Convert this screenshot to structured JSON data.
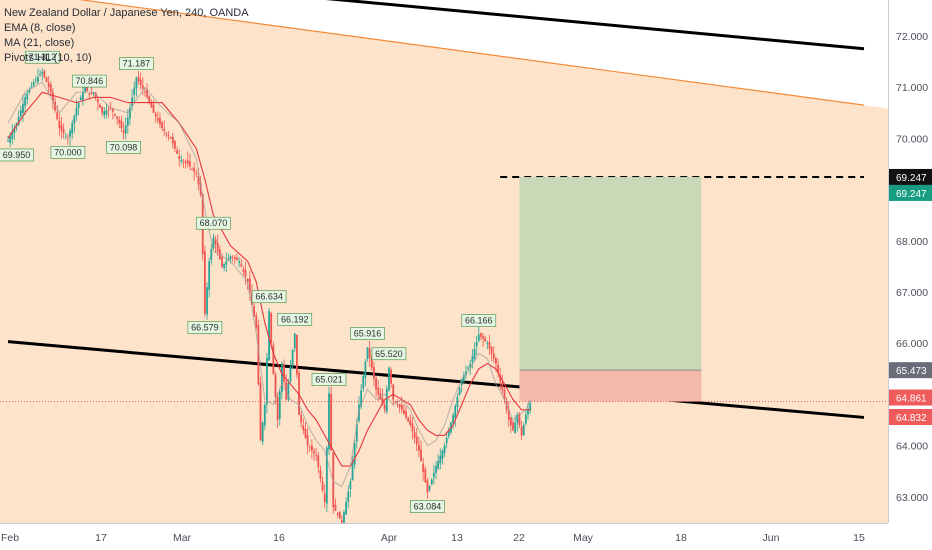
{
  "legend": {
    "symbol": "New Zealand Dollar / Japanese Yen, 240, OANDA",
    "ema": "EMA (8, close)",
    "ma": "MA (21, close)",
    "pivots": "Pivots HL (10, 10)"
  },
  "chart_data": {
    "type": "candlestick",
    "title": "New Zealand Dollar / Japanese Yen, 240, OANDA",
    "ylim": [
      62.7,
      72.7
    ],
    "y_ticks": [
      "63.000",
      "64.000",
      "65.000",
      "66.000",
      "67.000",
      "68.000",
      "69.000",
      "70.000",
      "71.000",
      "72.000"
    ],
    "x_ticks": [
      "Feb",
      "17",
      "Mar",
      "16",
      "Apr",
      "13",
      "22",
      "May",
      "18",
      "Jun",
      "15"
    ],
    "last_price": "64.832",
    "price_labels": [
      {
        "text": "69.247",
        "value": 69.247,
        "color": "#111111"
      },
      {
        "text": "69.247",
        "value": 69.247,
        "color": "#189d82"
      },
      {
        "text": "65.473",
        "value": 65.473,
        "color": "#6a6d78"
      },
      {
        "text": "64.861",
        "value": 64.861,
        "color": "#ef5b5b"
      },
      {
        "text": "64.832",
        "value": 64.832,
        "color": "#ef5b5b"
      }
    ],
    "pivot_labels": [
      {
        "text": "71.312",
        "x": 8,
        "value": 71.312,
        "kind": "high"
      },
      {
        "text": "70.846",
        "x": 19,
        "value": 70.846,
        "kind": "high"
      },
      {
        "text": "71.187",
        "x": 30,
        "value": 71.187,
        "kind": "high"
      },
      {
        "text": "69.950",
        "x": 2,
        "value": 69.95,
        "kind": "low"
      },
      {
        "text": "70.000",
        "x": 14,
        "value": 70.0,
        "kind": "low"
      },
      {
        "text": "70.098",
        "x": 27,
        "value": 70.098,
        "kind": "low"
      },
      {
        "text": "68.070",
        "x": 48,
        "value": 68.07,
        "kind": "high"
      },
      {
        "text": "66.579",
        "x": 46,
        "value": 66.579,
        "kind": "low"
      },
      {
        "text": "66.634",
        "x": 61,
        "value": 66.634,
        "kind": "high"
      },
      {
        "text": "66.192",
        "x": 67,
        "value": 66.192,
        "kind": "high"
      },
      {
        "text": "65.021",
        "x": 75,
        "value": 65.021,
        "kind": "high"
      },
      {
        "text": "65.916",
        "x": 84,
        "value": 65.916,
        "kind": "high"
      },
      {
        "text": "65.520",
        "x": 89,
        "value": 65.52,
        "kind": "high"
      },
      {
        "text": "63.084",
        "x": 98,
        "value": 63.084,
        "kind": "low"
      },
      {
        "text": "66.166",
        "x": 110,
        "value": 66.166,
        "kind": "high"
      }
    ],
    "ema8": [
      [
        0,
        70.3
      ],
      [
        4,
        70.9
      ],
      [
        8,
        71.1
      ],
      [
        12,
        70.5
      ],
      [
        16,
        70.9
      ],
      [
        20,
        70.9
      ],
      [
        24,
        70.6
      ],
      [
        28,
        70.5
      ],
      [
        32,
        71.0
      ],
      [
        36,
        70.6
      ],
      [
        40,
        70.3
      ],
      [
        44,
        69.6
      ],
      [
        46,
        68.6
      ],
      [
        48,
        67.8
      ],
      [
        52,
        67.6
      ],
      [
        56,
        67.2
      ],
      [
        58,
        66.2
      ],
      [
        60,
        64.9
      ],
      [
        62,
        64.8
      ],
      [
        64,
        65.2
      ],
      [
        66,
        64.9
      ],
      [
        68,
        64.8
      ],
      [
        70,
        64.4
      ],
      [
        72,
        64.1
      ],
      [
        74,
        63.9
      ],
      [
        76,
        63.3
      ],
      [
        78,
        63.2
      ],
      [
        80,
        63.6
      ],
      [
        82,
        64.7
      ],
      [
        84,
        65.1
      ],
      [
        86,
        64.9
      ],
      [
        88,
        65.0
      ],
      [
        90,
        64.8
      ],
      [
        92,
        64.9
      ],
      [
        94,
        64.7
      ],
      [
        96,
        64.3
      ],
      [
        98,
        64.0
      ],
      [
        100,
        64.1
      ],
      [
        102,
        64.4
      ],
      [
        104,
        64.9
      ],
      [
        106,
        65.3
      ],
      [
        108,
        65.5
      ],
      [
        110,
        65.8
      ],
      [
        112,
        65.7
      ],
      [
        114,
        65.2
      ],
      [
        116,
        64.9
      ],
      [
        118,
        64.5
      ],
      [
        119.5,
        64.6
      ],
      [
        121,
        64.7
      ],
      [
        122,
        64.9
      ]
    ],
    "ma21": [
      [
        0,
        70.0
      ],
      [
        4,
        70.5
      ],
      [
        8,
        70.9
      ],
      [
        12,
        70.8
      ],
      [
        16,
        70.7
      ],
      [
        20,
        70.8
      ],
      [
        24,
        70.8
      ],
      [
        28,
        70.7
      ],
      [
        32,
        70.7
      ],
      [
        36,
        70.7
      ],
      [
        40,
        70.3
      ],
      [
        44,
        69.8
      ],
      [
        46,
        69.2
      ],
      [
        48,
        68.5
      ],
      [
        52,
        67.9
      ],
      [
        56,
        67.6
      ],
      [
        58,
        67.2
      ],
      [
        60,
        66.4
      ],
      [
        62,
        65.8
      ],
      [
        64,
        65.4
      ],
      [
        66,
        65.2
      ],
      [
        68,
        65.0
      ],
      [
        70,
        64.7
      ],
      [
        72,
        64.5
      ],
      [
        74,
        64.2
      ],
      [
        76,
        63.9
      ],
      [
        78,
        63.6
      ],
      [
        80,
        63.6
      ],
      [
        82,
        63.9
      ],
      [
        84,
        64.3
      ],
      [
        86,
        64.6
      ],
      [
        88,
        64.9
      ],
      [
        90,
        65.0
      ],
      [
        92,
        64.9
      ],
      [
        94,
        64.8
      ],
      [
        96,
        64.5
      ],
      [
        98,
        64.3
      ],
      [
        100,
        64.2
      ],
      [
        102,
        64.2
      ],
      [
        104,
        64.4
      ],
      [
        106,
        64.8
      ],
      [
        108,
        65.2
      ],
      [
        110,
        65.5
      ],
      [
        112,
        65.6
      ],
      [
        114,
        65.5
      ],
      [
        116,
        65.2
      ],
      [
        118,
        64.9
      ],
      [
        120,
        64.7
      ],
      [
        122,
        64.7
      ]
    ],
    "price_path": [
      [
        0,
        69.95
      ],
      [
        2,
        70.3
      ],
      [
        4,
        70.8
      ],
      [
        6,
        71.1
      ],
      [
        8,
        71.3
      ],
      [
        10,
        70.9
      ],
      [
        12,
        70.2
      ],
      [
        14,
        70.0
      ],
      [
        16,
        70.6
      ],
      [
        18,
        71.0
      ],
      [
        19,
        70.85
      ],
      [
        20,
        70.9
      ],
      [
        22,
        70.5
      ],
      [
        24,
        70.6
      ],
      [
        26,
        70.3
      ],
      [
        27,
        70.1
      ],
      [
        28,
        70.4
      ],
      [
        30,
        71.19
      ],
      [
        32,
        70.9
      ],
      [
        34,
        70.5
      ],
      [
        36,
        70.2
      ],
      [
        38,
        70.0
      ],
      [
        40,
        69.6
      ],
      [
        42,
        69.5
      ],
      [
        44,
        69.3
      ],
      [
        45,
        68.9
      ],
      [
        46,
        66.58
      ],
      [
        47,
        67.6
      ],
      [
        48,
        68.07
      ],
      [
        50,
        67.5
      ],
      [
        52,
        67.7
      ],
      [
        54,
        67.6
      ],
      [
        56,
        67.2
      ],
      [
        58,
        66.3
      ],
      [
        59,
        64.1
      ],
      [
        60,
        64.8
      ],
      [
        61,
        66.63
      ],
      [
        62,
        65.4
      ],
      [
        63,
        64.5
      ],
      [
        64,
        65.6
      ],
      [
        65,
        64.9
      ],
      [
        67,
        66.19
      ],
      [
        68,
        64.6
      ],
      [
        70,
        64.0
      ],
      [
        72,
        63.8
      ],
      [
        74,
        62.9
      ],
      [
        75,
        65.02
      ],
      [
        76,
        62.8
      ],
      [
        78,
        62.5
      ],
      [
        80,
        63.3
      ],
      [
        82,
        64.8
      ],
      [
        84,
        65.92
      ],
      [
        86,
        65.1
      ],
      [
        88,
        64.7
      ],
      [
        89,
        65.52
      ],
      [
        90,
        64.9
      ],
      [
        92,
        64.7
      ],
      [
        94,
        64.4
      ],
      [
        96,
        63.9
      ],
      [
        98,
        63.08
      ],
      [
        100,
        63.6
      ],
      [
        102,
        64.0
      ],
      [
        104,
        64.6
      ],
      [
        106,
        65.3
      ],
      [
        108,
        65.6
      ],
      [
        110,
        66.17
      ],
      [
        112,
        66.0
      ],
      [
        114,
        65.6
      ],
      [
        116,
        64.9
      ],
      [
        117,
        64.5
      ],
      [
        118,
        64.3
      ],
      [
        119,
        64.6
      ],
      [
        120,
        64.2
      ],
      [
        121,
        64.6
      ],
      [
        122,
        64.83
      ]
    ],
    "lines": [
      {
        "name": "upper-thick",
        "color": "#000000",
        "points": [
          [
            72,
            72.75
          ],
          [
            200,
            71.75
          ]
        ]
      },
      {
        "name": "lower-thick",
        "color": "#000000",
        "points": [
          [
            0,
            66.03
          ],
          [
            200,
            64.55
          ]
        ]
      },
      {
        "name": "orange-upper",
        "color": "#f4893a",
        "points": [
          [
            0,
            72.9
          ],
          [
            200,
            70.65
          ]
        ]
      },
      {
        "name": "target-dashed",
        "color": "#000000",
        "points": [
          [
            115,
            69.247
          ],
          [
            200,
            69.247
          ]
        ],
        "dashed": true
      }
    ],
    "position": {
      "x_start": 119.5,
      "x_end": 162,
      "entry": 64.861,
      "target": 69.247,
      "stop": 65.473
    }
  }
}
